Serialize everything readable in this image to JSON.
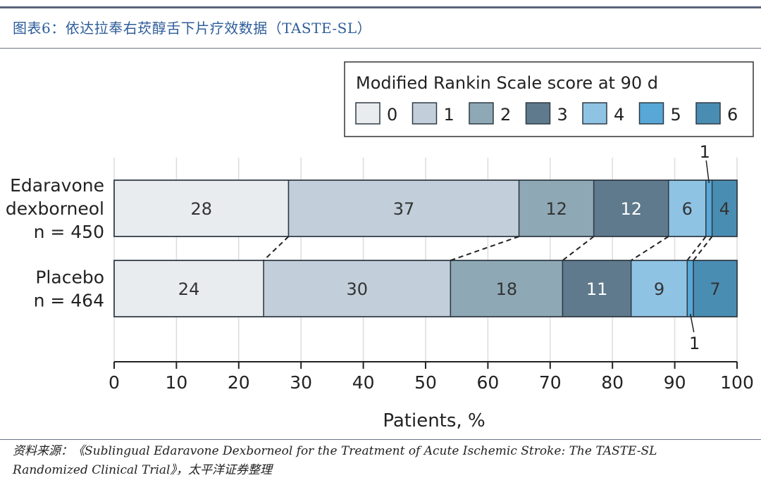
{
  "header": {
    "title": "图表6：依达拉奉右莰醇舌下片疗效数据（TASTE-SL）"
  },
  "footer": {
    "source_line1": "资料来源：《Sublingual Edaravone Dexborneol for the Treatment of Acute Ischemic Stroke: The TASTE-SL",
    "source_line2": "Randomized Clinical Trial》，太平洋证券整理"
  },
  "chart_data": {
    "type": "bar",
    "orientation": "horizontal-stacked-100",
    "title": "",
    "legend_title": "Modified Rankin Scale score at 90 d",
    "legend_placement": "top-right",
    "xlabel": "Patients, %",
    "ylabel": "",
    "xlim": [
      0,
      100
    ],
    "xticks": [
      "0",
      "10",
      "20",
      "30",
      "40",
      "50",
      "60",
      "70",
      "80",
      "90",
      "100"
    ],
    "categories": [
      {
        "name_lines": [
          "Edaravone",
          "dexborneol",
          "n = 450"
        ]
      },
      {
        "name_lines": [
          "Placebo",
          "n = 464"
        ]
      }
    ],
    "series": [
      {
        "name": "0",
        "color": "#e9ecef",
        "values": [
          28,
          24
        ],
        "label_color": "#333333"
      },
      {
        "name": "1",
        "color": "#c2cfda",
        "values": [
          37,
          30
        ],
        "label_color": "#333333"
      },
      {
        "name": "2",
        "color": "#8ea8b6",
        "values": [
          12,
          18
        ],
        "label_color": "#333333"
      },
      {
        "name": "3",
        "color": "#5f7a8c",
        "values": [
          12,
          11
        ],
        "label_color": "#ffffff"
      },
      {
        "name": "4",
        "color": "#8fc3e4",
        "values": [
          6,
          9
        ],
        "label_color": "#333333"
      },
      {
        "name": "5",
        "color": "#57a8d6",
        "values": [
          1,
          1
        ],
        "label_color": "#333333"
      },
      {
        "name": "6",
        "color": "#4a8db3",
        "values": [
          4,
          7
        ],
        "label_color": "#333333"
      }
    ],
    "grid": true
  }
}
